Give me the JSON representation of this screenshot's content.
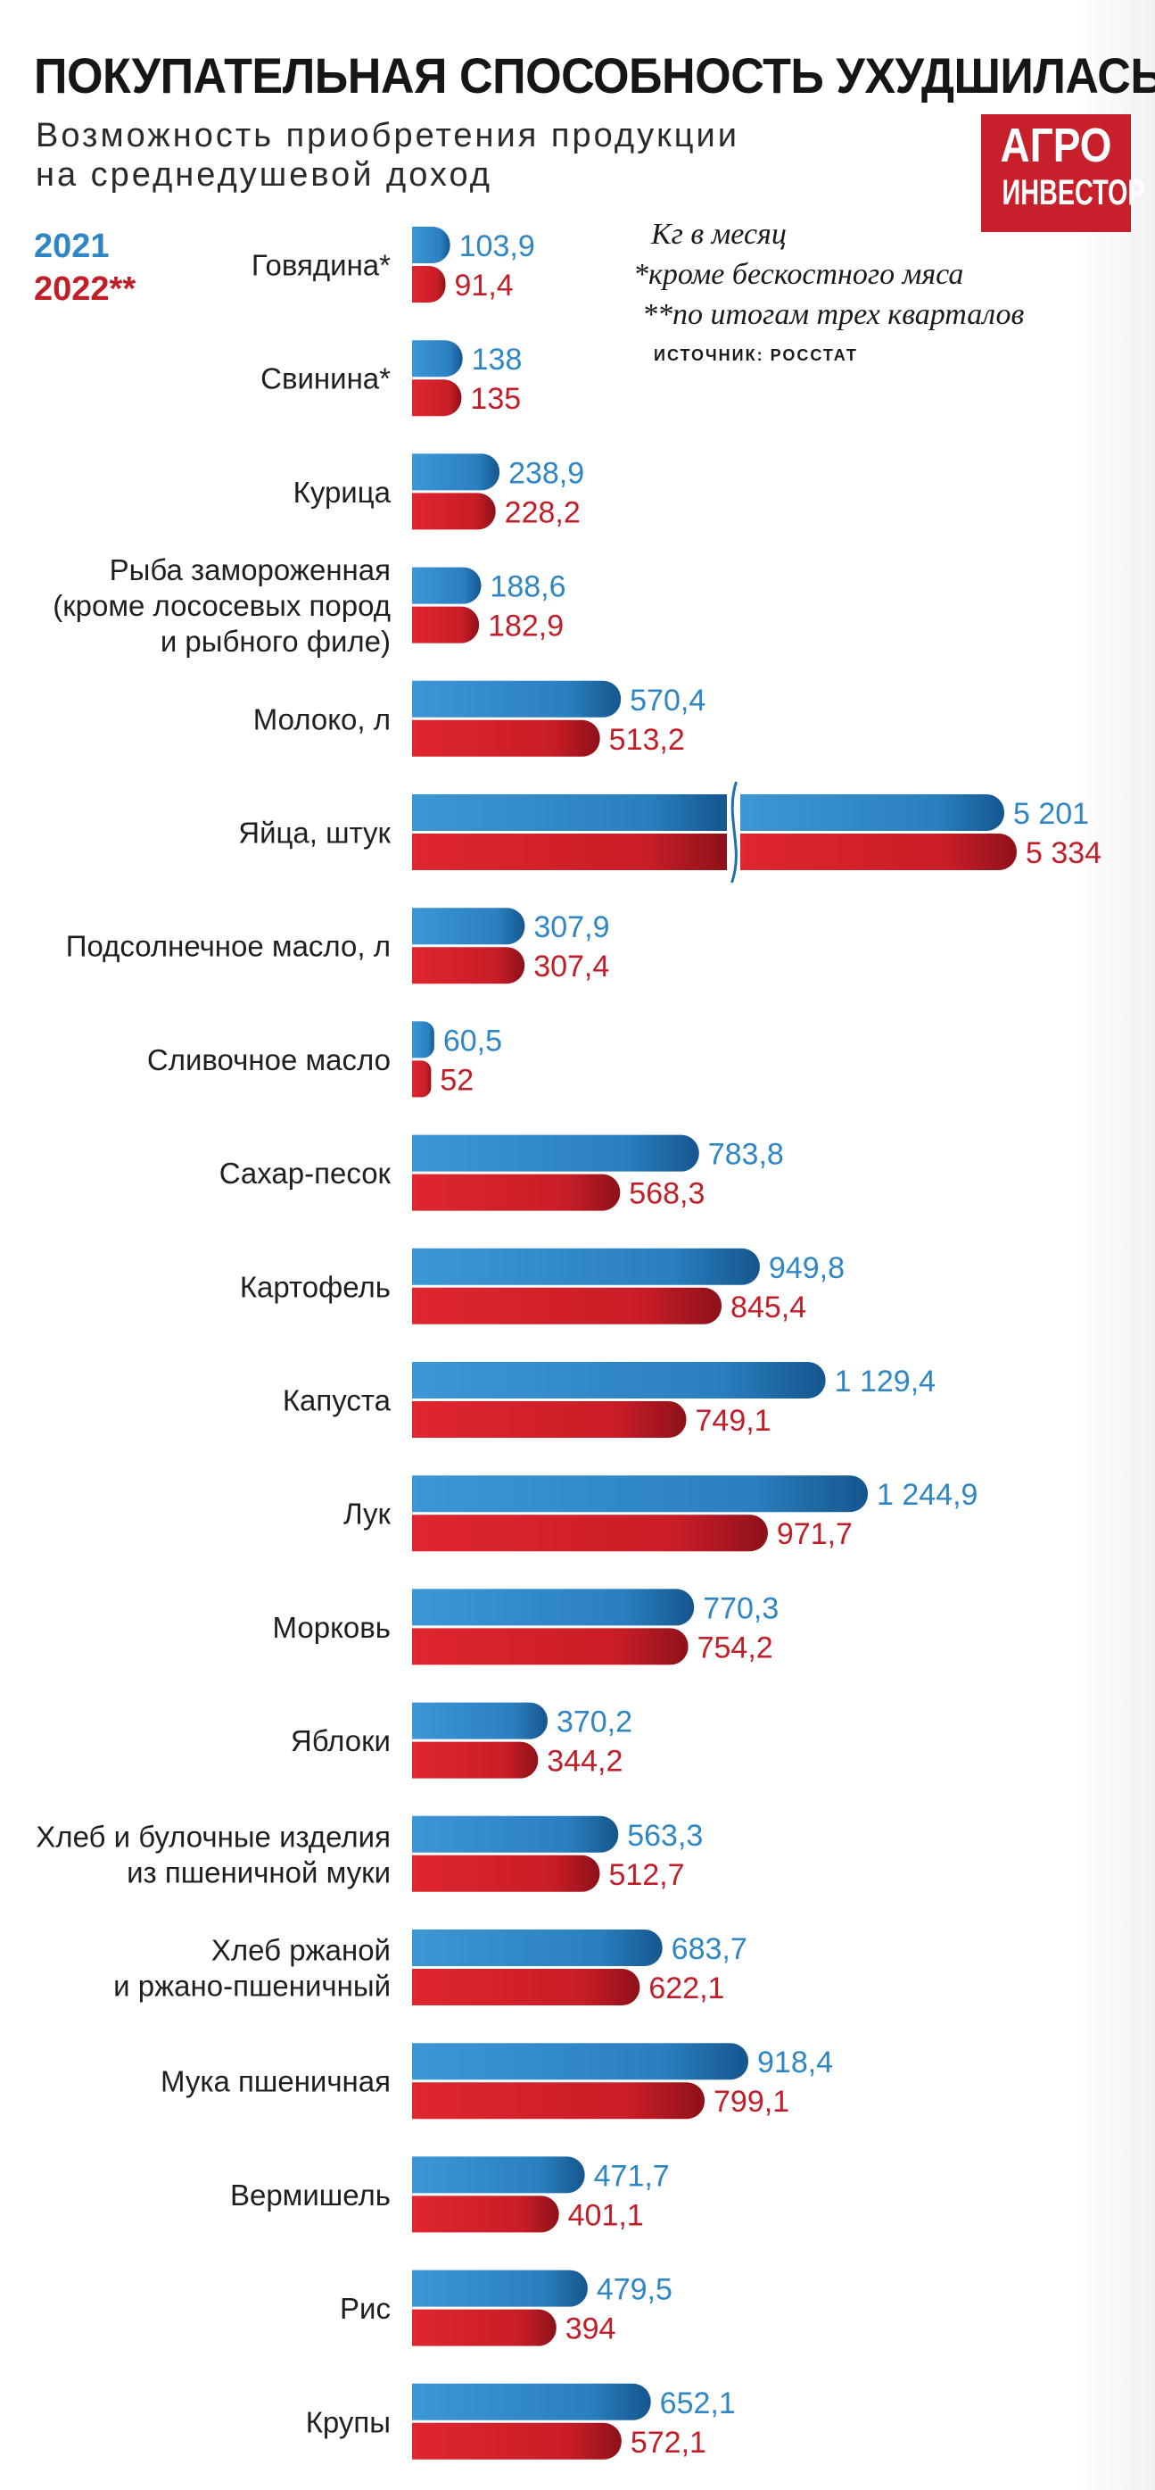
{
  "header": {
    "title": "ПОКУПАТЕЛЬНАЯ СПОСОБНОСТЬ УХУДШИЛАСЬ",
    "subtitle_line1": "Возможность приобретения продукции",
    "subtitle_line2": "на среднедушевой доход"
  },
  "logo": {
    "line1": "АГРО",
    "line2": "ИНВЕСТОР"
  },
  "legend": {
    "y2021": "2021",
    "y2022": "2022**"
  },
  "notes": {
    "unit": "Кг в месяц",
    "note1": "*кроме бескостного мяса",
    "note2": "**по итогам трех кварталов",
    "source": "ИСТОЧНИК: РОССТАТ"
  },
  "colors": {
    "blue_2021": "#2f86c4",
    "red_2022": "#c21e28"
  },
  "chart_data": {
    "type": "bar",
    "orientation": "horizontal",
    "axis_break": "Яйца, штук",
    "categories": [
      [
        "Говядина*"
      ],
      [
        "Свинина*"
      ],
      [
        "Курица"
      ],
      [
        "Рыба замороженная",
        "(кроме лососевых пород",
        "и рыбного филе)"
      ],
      [
        "Молоко, л"
      ],
      [
        "Яйца, штук"
      ],
      [
        "Подсолнечное масло, л"
      ],
      [
        "Сливочное масло"
      ],
      [
        "Сахар-песок"
      ],
      [
        "Картофель"
      ],
      [
        "Капуста"
      ],
      [
        "Лук"
      ],
      [
        "Морковь"
      ],
      [
        "Яблоки"
      ],
      [
        "Хлеб и булочные изделия",
        "из пшеничной муки"
      ],
      [
        "Хлеб ржаной",
        "и ржано-пшеничный"
      ],
      [
        "Мука пшеничная"
      ],
      [
        "Вермишель"
      ],
      [
        "Рис"
      ],
      [
        "Крупы"
      ]
    ],
    "series": [
      {
        "name": "2021",
        "values": [
          103.9,
          138,
          238.9,
          188.6,
          570.4,
          5201,
          307.9,
          60.5,
          783.8,
          949.8,
          1129.4,
          1244.9,
          770.3,
          370.2,
          563.3,
          683.7,
          918.4,
          471.7,
          479.5,
          652.1
        ],
        "labels": [
          "103,9",
          "138",
          "238,9",
          "188,6",
          "570,4",
          "5 201",
          "307,9",
          "60,5",
          "783,8",
          "949,8",
          "1 129,4",
          "1 244,9",
          "770,3",
          "370,2",
          "563,3",
          "683,7",
          "918,4",
          "471,7",
          "479,5",
          "652,1"
        ]
      },
      {
        "name": "2022**",
        "values": [
          91.4,
          135,
          228.2,
          182.9,
          513.2,
          5334,
          307.4,
          52,
          568.3,
          845.4,
          749.1,
          971.7,
          754.2,
          344.2,
          512.7,
          622.1,
          799.1,
          401.1,
          394,
          572.1
        ],
        "labels": [
          "91,4",
          "135",
          "228,2",
          "182,9",
          "513,2",
          "5 334",
          "307,4",
          "52",
          "568,3",
          "845,4",
          "749,1",
          "971,7",
          "754,2",
          "344,2",
          "512,7",
          "622,1",
          "799,1",
          "401,1",
          "394",
          "572,1"
        ]
      }
    ]
  }
}
